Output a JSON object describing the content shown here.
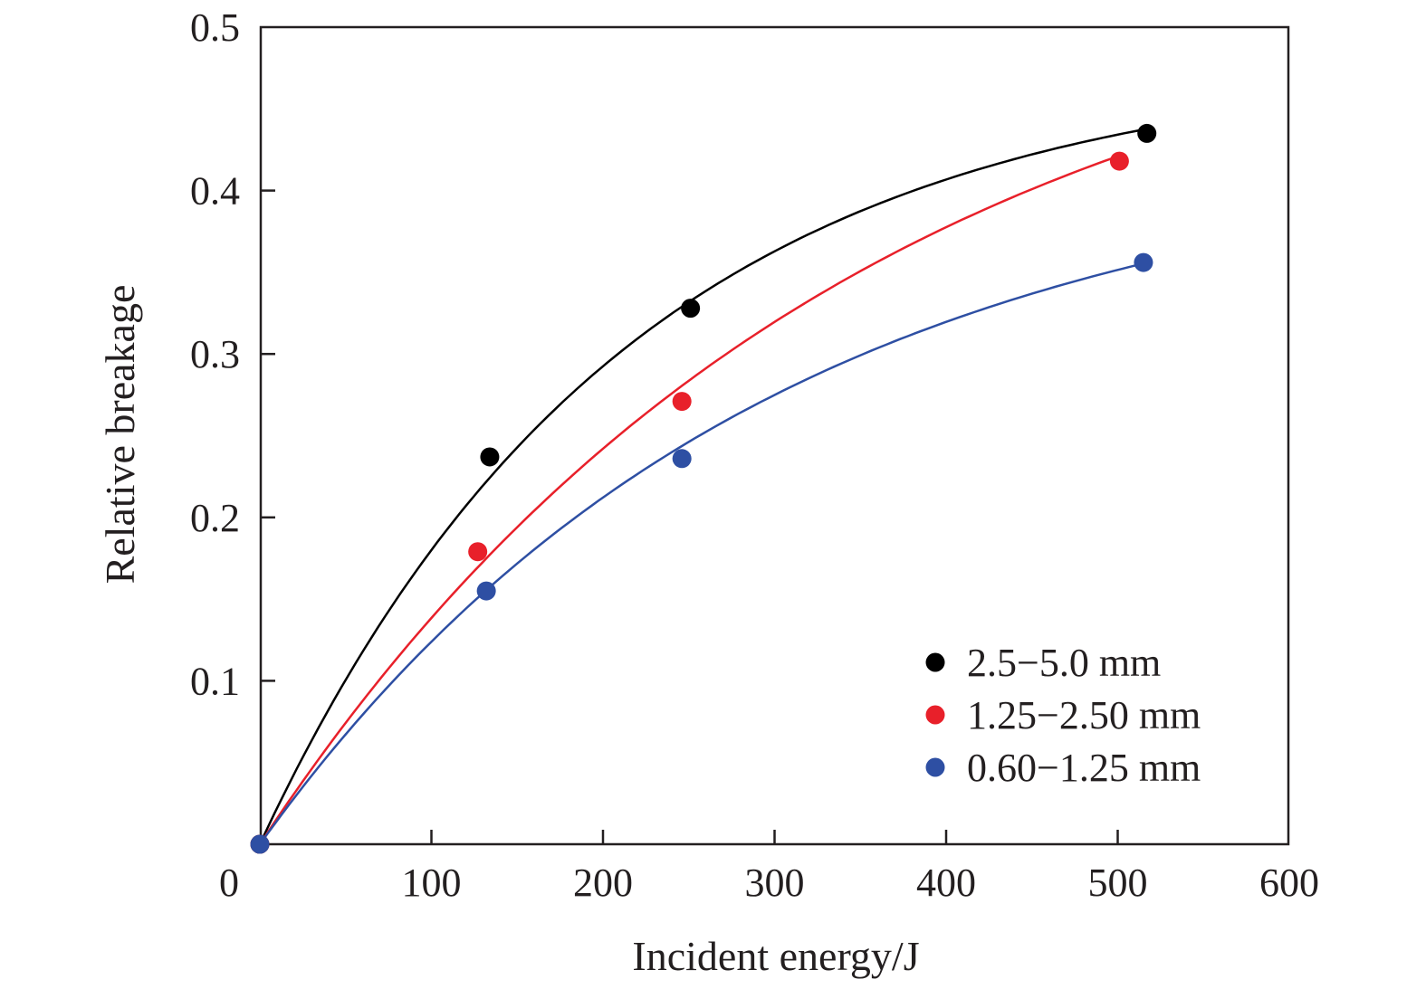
{
  "chart_data": {
    "type": "scatter",
    "xlabel": "Incident energy/J",
    "ylabel": "Relative breakage",
    "xlim": [
      0,
      600
    ],
    "ylim": [
      0,
      0.5
    ],
    "x_ticks": [
      0,
      100,
      200,
      300,
      400,
      500,
      600
    ],
    "x_tick_labels": [
      "0",
      "100",
      "200",
      "300",
      "400",
      "500",
      "600"
    ],
    "y_ticks": [
      0.1,
      0.2,
      0.3,
      0.4,
      0.5
    ],
    "y_tick_labels": [
      "0.1",
      "0.2",
      "0.3",
      "0.4",
      "0.5"
    ],
    "grid": false,
    "legend_position": "bottom-right",
    "series": [
      {
        "name": "2.5−5.0 mm",
        "color": "#000000",
        "points": [
          {
            "x": 0,
            "y": 0
          },
          {
            "x": 134,
            "y": 0.237
          },
          {
            "x": 251,
            "y": 0.328
          },
          {
            "x": 517,
            "y": 0.435
          }
        ],
        "fit": {
          "model": "exponential_saturation",
          "a": 0.48,
          "b": 0.0047
        }
      },
      {
        "name": "1.25−2.50 mm",
        "color": "#e8202a",
        "points": [
          {
            "x": 0,
            "y": 0
          },
          {
            "x": 127,
            "y": 0.179
          },
          {
            "x": 246,
            "y": 0.271
          },
          {
            "x": 501,
            "y": 0.418
          }
        ],
        "fit": {
          "model": "exponential_saturation",
          "a": 0.55,
          "b": 0.0029
        }
      },
      {
        "name": "0.60−1.25 mm",
        "color": "#2e4fa3",
        "points": [
          {
            "x": 0,
            "y": 0
          },
          {
            "x": 132,
            "y": 0.155
          },
          {
            "x": 246,
            "y": 0.236
          },
          {
            "x": 515,
            "y": 0.356
          }
        ],
        "fit": {
          "model": "exponential_saturation",
          "a": 0.43,
          "b": 0.0034
        }
      }
    ]
  }
}
